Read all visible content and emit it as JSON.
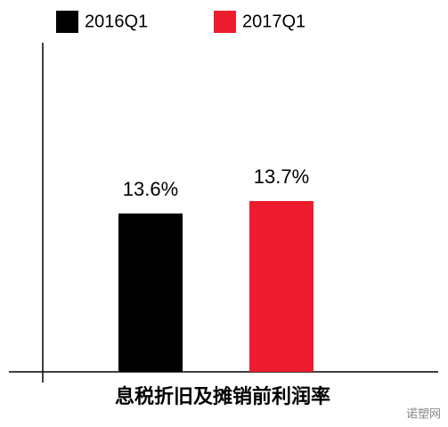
{
  "chart_data": {
    "type": "bar",
    "categories": [
      "息税折旧及摊销前利润率"
    ],
    "series": [
      {
        "name": "2016Q1",
        "color": "#000000",
        "values": [
          13.6
        ],
        "value_labels": [
          "13.6%"
        ]
      },
      {
        "name": "2017Q1",
        "color": "#ed1c2e",
        "values": [
          13.7
        ],
        "value_labels": [
          "13.7%"
        ]
      }
    ],
    "ylim": [
      12.33,
      14.97
    ],
    "watermark": "诺塑网"
  }
}
